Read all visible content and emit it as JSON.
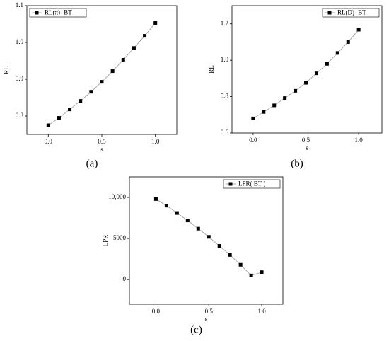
{
  "chart_data": [
    {
      "type": "line",
      "x_label": "s",
      "y_label": "RL",
      "caption": "(a)",
      "x": [
        0,
        0.1,
        0.2,
        0.3,
        0.4,
        0.5,
        0.6,
        0.7,
        0.8,
        0.9,
        1.0
      ],
      "series": [
        {
          "name": "RL(π)- BT",
          "color": "#000000",
          "values": [
            0.775,
            0.795,
            0.818,
            0.841,
            0.866,
            0.893,
            0.922,
            0.953,
            0.985,
            1.018,
            1.053
          ]
        }
      ],
      "xlim": [
        -0.2,
        1.2
      ],
      "xticks": [
        {
          "value": 0,
          "label": "0.0"
        },
        0.5,
        {
          "value": 1,
          "label": "1.0"
        }
      ],
      "ylim": [
        0.75,
        1.1
      ],
      "yticks": [
        0.8,
        0.9,
        {
          "value": 1,
          "label": "1.0"
        },
        1.1
      ],
      "legend": "top-left"
    },
    {
      "type": "line",
      "x_label": "s",
      "y_label": "RL",
      "caption": "(b)",
      "x": [
        0,
        0.1,
        0.2,
        0.3,
        0.4,
        0.5,
        0.6,
        0.7,
        0.8,
        0.9,
        1.0
      ],
      "series": [
        {
          "name": "RL(D)- BT",
          "color": "#000000",
          "values": [
            0.68,
            0.716,
            0.752,
            0.792,
            0.832,
            0.876,
            0.928,
            0.98,
            1.04,
            1.1,
            1.168
          ]
        }
      ],
      "xlim": [
        -0.2,
        1.22
      ],
      "xticks": [
        {
          "value": 0,
          "label": "0.0"
        },
        0.5,
        {
          "value": 1,
          "label": "1.0"
        }
      ],
      "ylim": [
        0.6,
        1.3
      ],
      "yticks": [
        0.6,
        0.8,
        {
          "value": 1,
          "label": "1.0"
        },
        1.2
      ],
      "legend": "top-right"
    },
    {
      "type": "line",
      "x_label": "s",
      "y_label": "LPR",
      "caption": "(c)",
      "x": [
        0,
        0.1,
        0.2,
        0.3,
        0.4,
        0.5,
        0.6,
        0.7,
        0.8,
        0.9,
        1.0
      ],
      "series": [
        {
          "name": "LPR(  BT  )",
          "color": "#000000",
          "values": [
            9800,
            9000,
            8100,
            7200,
            6200,
            5200,
            4100,
            3000,
            1800,
            500,
            900
          ]
        }
      ],
      "xlim": [
        -0.25,
        1.2
      ],
      "xticks": [
        {
          "value": 0,
          "label": "0.0"
        },
        0.5,
        {
          "value": 1,
          "label": "1.0"
        }
      ],
      "ylim": [
        -3000,
        12500
      ],
      "yticks": [
        0,
        5000,
        {
          "value": 10000,
          "label": "10,000"
        }
      ],
      "legend": "top-right"
    }
  ]
}
